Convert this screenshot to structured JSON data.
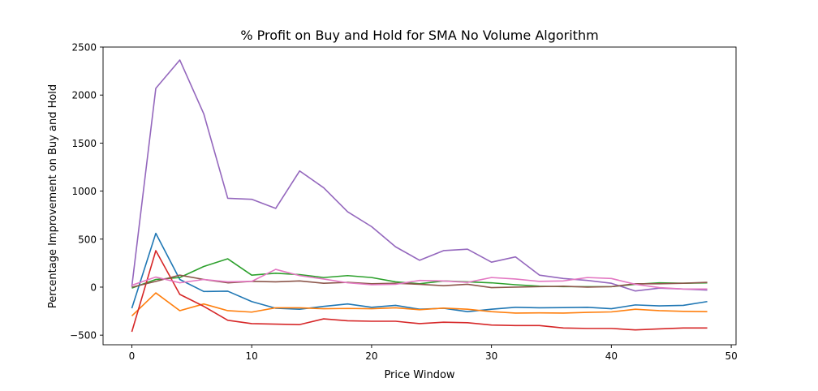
{
  "chart_data": {
    "type": "line",
    "title": "% Profit on Buy and Hold for SMA No Volume Algorithm",
    "xlabel": "Price Window",
    "ylabel": "Percentage Improvement on Buy and Hold",
    "xlim": [
      -2.4,
      50.4
    ],
    "ylim": [
      -600,
      2500
    ],
    "xticks": [
      0,
      10,
      20,
      30,
      40,
      50
    ],
    "yticks": [
      -500,
      0,
      500,
      1000,
      1500,
      2000,
      2500
    ],
    "grid": false,
    "x": [
      0,
      2,
      4,
      6,
      8,
      10,
      12,
      14,
      16,
      18,
      20,
      22,
      24,
      26,
      28,
      30,
      32,
      34,
      36,
      38,
      40,
      42,
      44,
      46,
      48
    ],
    "series": [
      {
        "color": "#1f77b4",
        "values": [
          -220,
          560,
          80,
          -45,
          -42,
          -150,
          -220,
          -230,
          -200,
          -175,
          -210,
          -190,
          -230,
          -220,
          -255,
          -230,
          -210,
          -215,
          -213,
          -210,
          -225,
          -185,
          -195,
          -190,
          -150
        ]
      },
      {
        "color": "#ff7f0e",
        "values": [
          -300,
          -60,
          -245,
          -175,
          -245,
          -260,
          -215,
          -215,
          -225,
          -222,
          -225,
          -215,
          -235,
          -218,
          -230,
          -255,
          -270,
          -268,
          -270,
          -263,
          -258,
          -230,
          -245,
          -252,
          -255
        ]
      },
      {
        "color": "#2ca02c",
        "values": [
          -10,
          80,
          100,
          215,
          295,
          125,
          145,
          130,
          100,
          120,
          100,
          55,
          35,
          65,
          55,
          45,
          25,
          10,
          5,
          5,
          5,
          30,
          45,
          40,
          45
        ]
      },
      {
        "color": "#d62728",
        "values": [
          -465,
          380,
          -75,
          -200,
          -345,
          -380,
          -385,
          -390,
          -330,
          -350,
          -355,
          -355,
          -380,
          -365,
          -370,
          -395,
          -400,
          -400,
          -425,
          -430,
          -430,
          -445,
          -435,
          -425,
          -425
        ]
      },
      {
        "color": "#9467bd",
        "values": [
          5,
          2070,
          2365,
          1805,
          925,
          915,
          820,
          1210,
          1035,
          785,
          630,
          420,
          280,
          380,
          395,
          260,
          315,
          125,
          90,
          70,
          40,
          -40,
          -10,
          -20,
          -30
        ]
      },
      {
        "color": "#8c564b",
        "values": [
          0,
          60,
          125,
          80,
          45,
          60,
          55,
          65,
          40,
          50,
          35,
          40,
          30,
          15,
          30,
          -5,
          0,
          5,
          10,
          0,
          5,
          35,
          35,
          40,
          50
        ]
      },
      {
        "color": "#e377c2",
        "values": [
          20,
          105,
          45,
          80,
          55,
          60,
          185,
          120,
          85,
          45,
          25,
          30,
          70,
          65,
          50,
          100,
          85,
          60,
          65,
          100,
          90,
          30,
          -5,
          -20,
          -20
        ]
      }
    ]
  }
}
